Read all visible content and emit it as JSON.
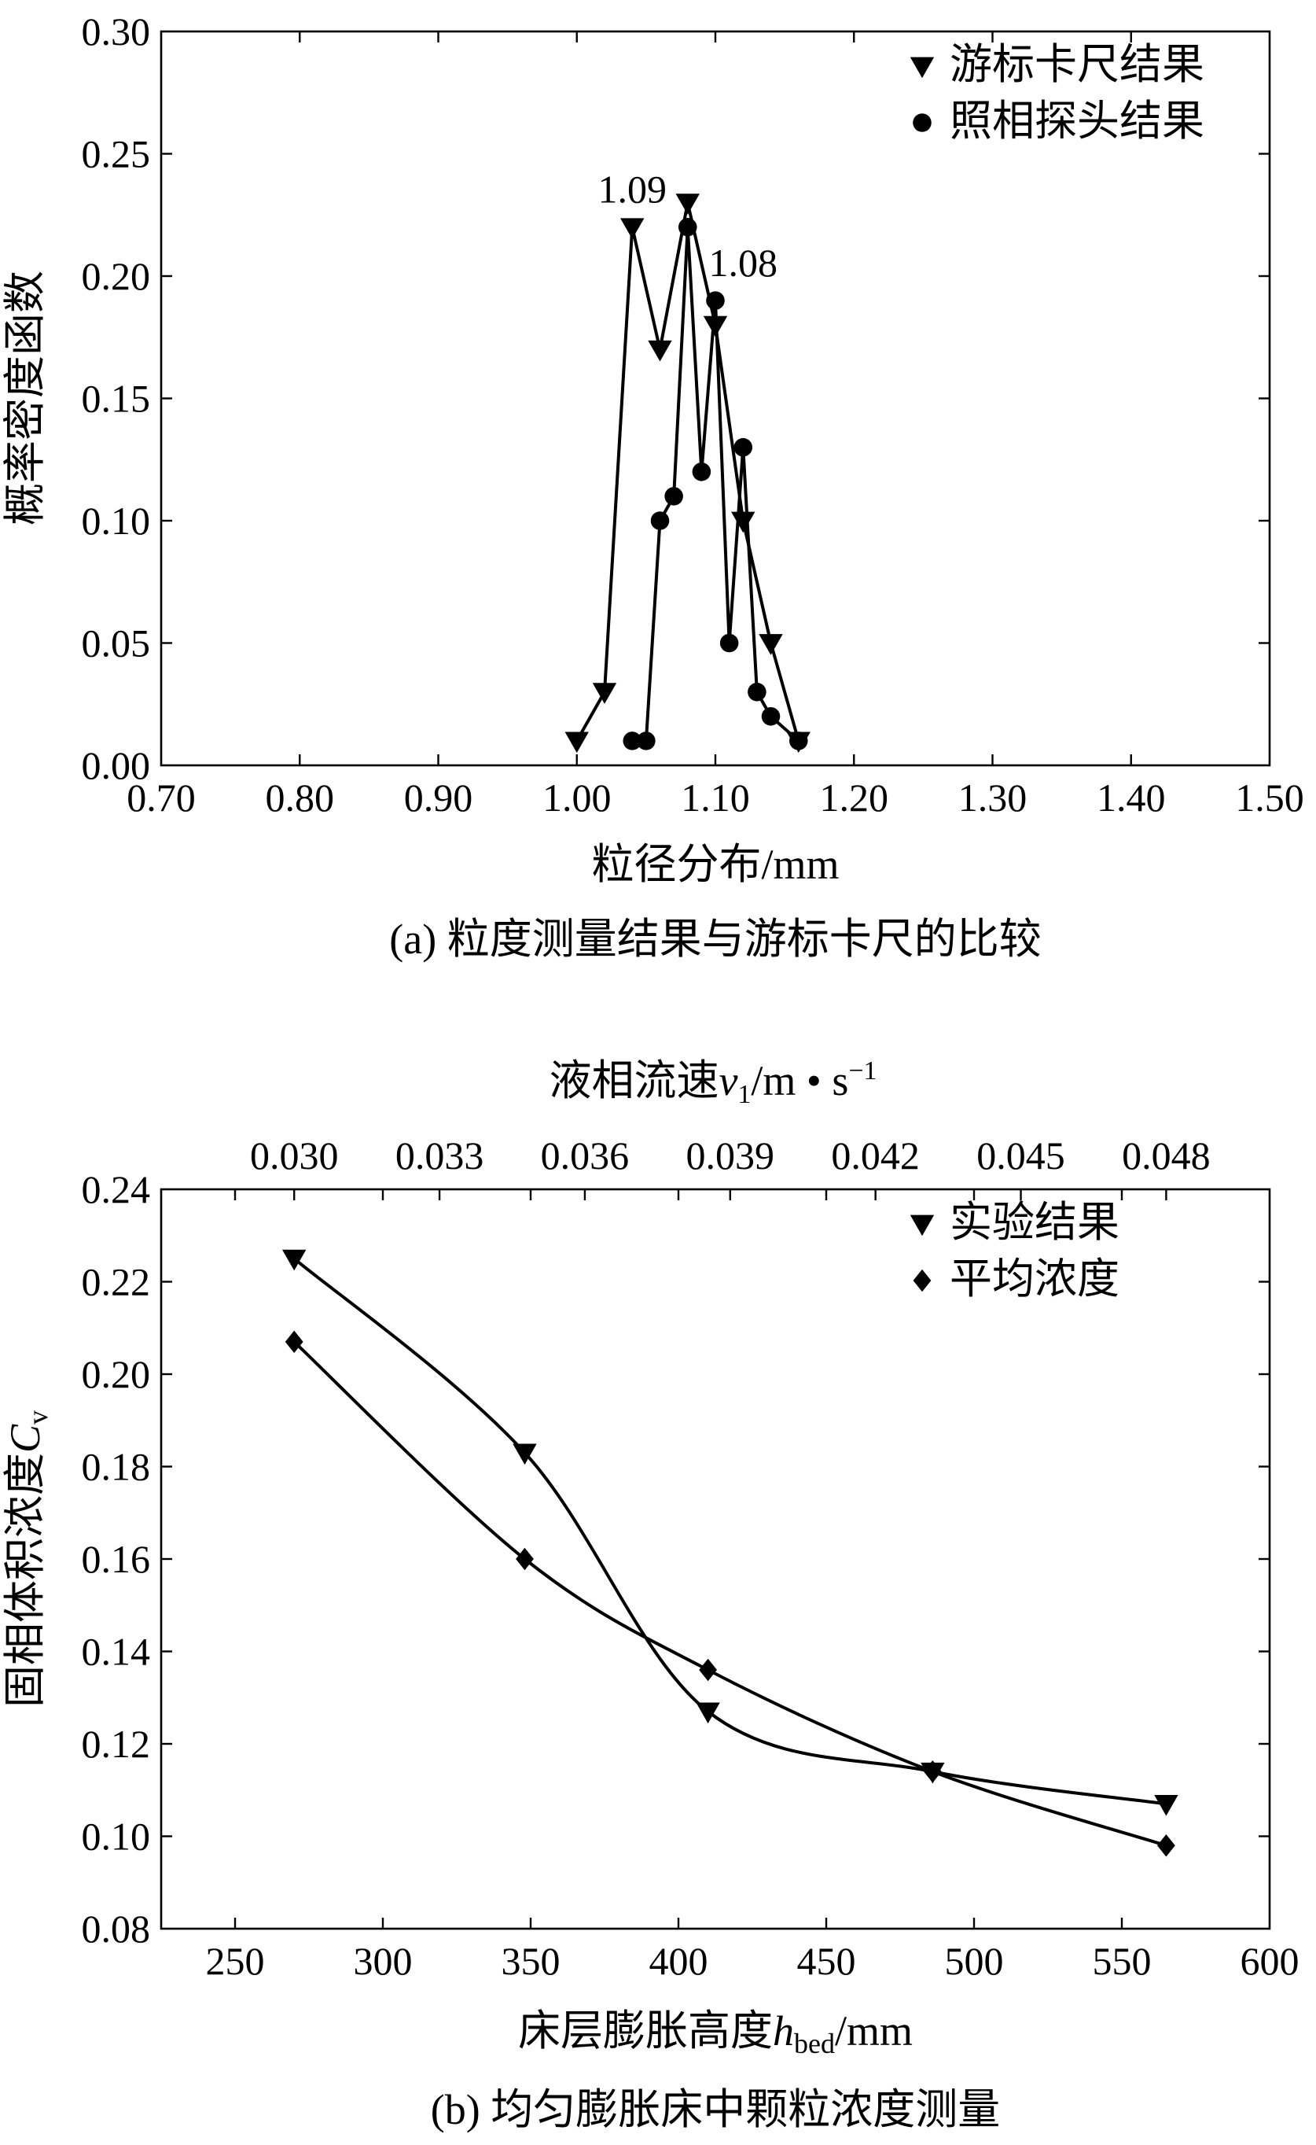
{
  "chart_data": [
    {
      "type": "line",
      "caption": "(a) 粒度测量结果与游标卡尺的比较",
      "xlabel": "粒径分布/mm",
      "ylabel": "概率密度函数",
      "xlim": [
        0.7,
        1.5
      ],
      "ylim": [
        0.0,
        0.3
      ],
      "xticks": [
        "0.70",
        "0.80",
        "0.90",
        "1.00",
        "1.10",
        "1.20",
        "1.30",
        "1.40",
        "1.50"
      ],
      "yticks": [
        "0.00",
        "0.05",
        "0.10",
        "0.15",
        "0.20",
        "0.25",
        "0.30"
      ],
      "legend_position": "top-right",
      "series": [
        {
          "name": "游标卡尺结果",
          "marker": "triangle-down",
          "x": [
            1.0,
            1.02,
            1.04,
            1.06,
            1.08,
            1.1,
            1.12,
            1.14,
            1.16
          ],
          "y": [
            0.01,
            0.03,
            0.22,
            0.17,
            0.23,
            0.18,
            0.1,
            0.05,
            0.01
          ]
        },
        {
          "name": "照相探头结果",
          "marker": "circle",
          "x": [
            1.04,
            1.05,
            1.06,
            1.07,
            1.08,
            1.09,
            1.1,
            1.11,
            1.12,
            1.13,
            1.14,
            1.16
          ],
          "y": [
            0.01,
            0.01,
            0.1,
            0.11,
            0.22,
            0.12,
            0.19,
            0.05,
            0.13,
            0.03,
            0.02,
            0.01
          ]
        }
      ],
      "annotations": [
        {
          "text": "1.09",
          "x": 1.04,
          "y": 0.23
        },
        {
          "text": "1.08",
          "x": 1.12,
          "y": 0.2
        }
      ]
    },
    {
      "type": "line",
      "caption": "(b) 均匀膨胀床中颗粒浓度测量",
      "xlabel_parts": [
        "床层膨胀高度",
        "h",
        "bed",
        "/mm"
      ],
      "ylabel_parts": [
        "固相体积浓度",
        "C",
        "v"
      ],
      "top_xlabel_parts": [
        "液相流速",
        "v",
        "1",
        "/m • s",
        "−1"
      ],
      "xlim": [
        225,
        600
      ],
      "ylim": [
        0.08,
        0.24
      ],
      "xticks": [
        "250",
        "300",
        "350",
        "400",
        "450",
        "500",
        "550",
        "600"
      ],
      "yticks": [
        "0.08",
        "0.10",
        "0.12",
        "0.14",
        "0.16",
        "0.18",
        "0.20",
        "0.22",
        "0.24"
      ],
      "top_xticks": [
        "0.030",
        "0.033",
        "0.036",
        "0.039",
        "0.042",
        "0.045",
        "0.048"
      ],
      "legend_position": "top-right",
      "series": [
        {
          "name": "实验结果",
          "marker": "triangle-down",
          "x": [
            270,
            348,
            410,
            486,
            565
          ],
          "y": [
            0.225,
            0.183,
            0.127,
            0.114,
            0.107
          ]
        },
        {
          "name": "平均浓度",
          "marker": "diamond",
          "x": [
            270,
            348,
            410,
            486,
            565
          ],
          "y": [
            0.207,
            0.16,
            0.136,
            0.114,
            0.098
          ]
        }
      ]
    }
  ]
}
